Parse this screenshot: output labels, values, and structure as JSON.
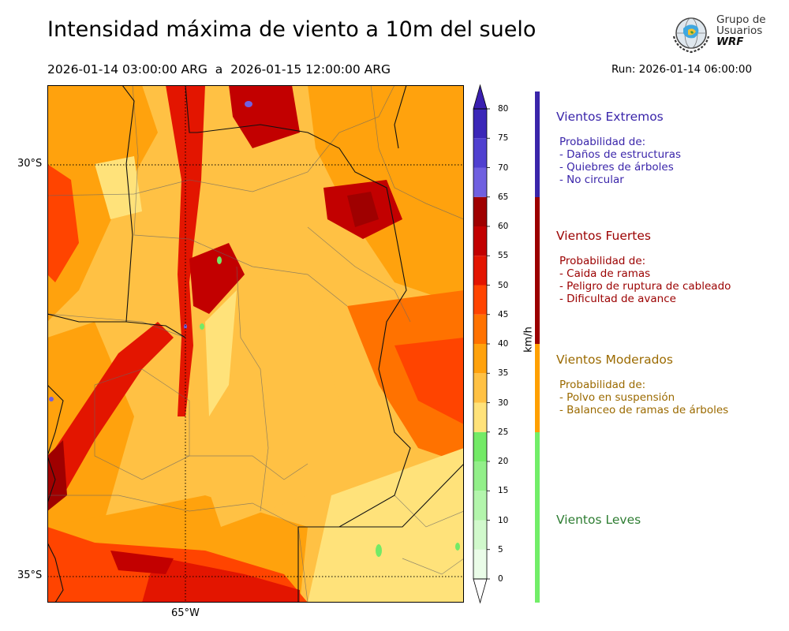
{
  "title": "Intensidad máxima de viento a 10m del suelo",
  "period": "2026-01-14 03:00:00 ARG  a  2026-01-15 12:00:00 ARG",
  "run": "Run: 2026-01-14 06:00:00",
  "logo": {
    "line1": "Grupo de",
    "line2": "Usuarios",
    "line3": "WRF"
  },
  "map": {
    "lat_labels": [
      "30°S",
      "35°S"
    ],
    "lon_labels": [
      "65°W"
    ],
    "grid_style": "dotted",
    "dominant_fill": "orange-yellow (25–45 km/h) with red bands (45–65 km/h) along mountain ranges and north-east; small violet spots (>65 km/h)"
  },
  "colorbar": {
    "unit": "km/h",
    "levels": [
      0,
      5,
      10,
      15,
      20,
      25,
      30,
      35,
      40,
      45,
      50,
      55,
      60,
      65,
      70,
      75,
      80
    ],
    "colors": [
      "#eafce8",
      "#d1f9cc",
      "#b3f5ac",
      "#92ef89",
      "#73ea66",
      "#ffe27a",
      "#ffc144",
      "#ffa20d",
      "#ff7200",
      "#ff4400",
      "#e31500",
      "#c20000",
      "#9f0000",
      "#7060e0",
      "#5040d0",
      "#3b27b8"
    ],
    "extend": "both",
    "under_color": "#ffffff",
    "over_color": "#3a1fb0"
  },
  "categories": [
    {
      "name": "Vientos Extremos",
      "color": "#3a25aa",
      "text_color": "#3a25aa",
      "lines": [
        "Probabilidad de:",
        "- Daños de estructuras",
        "- Quiebres de árboles",
        "- No circular"
      ]
    },
    {
      "name": "Vientos Fuertes",
      "color": "#9b0000",
      "text_color": "#9b0000",
      "lines": [
        "Probabilidad de:",
        "- Caida de ramas",
        "- Peligro de ruptura de cableado",
        "- Dificultad de avance"
      ]
    },
    {
      "name": "Vientos Moderados",
      "color": "#ffa000",
      "text_color": "#9b6a00",
      "lines": [
        "Probabilidad de:",
        "- Polvo en suspensión",
        "- Balanceo de ramas de árboles"
      ]
    },
    {
      "name": "Vientos Leves",
      "color": "#72ee68",
      "text_color": "#2e7d32",
      "lines": []
    }
  ]
}
